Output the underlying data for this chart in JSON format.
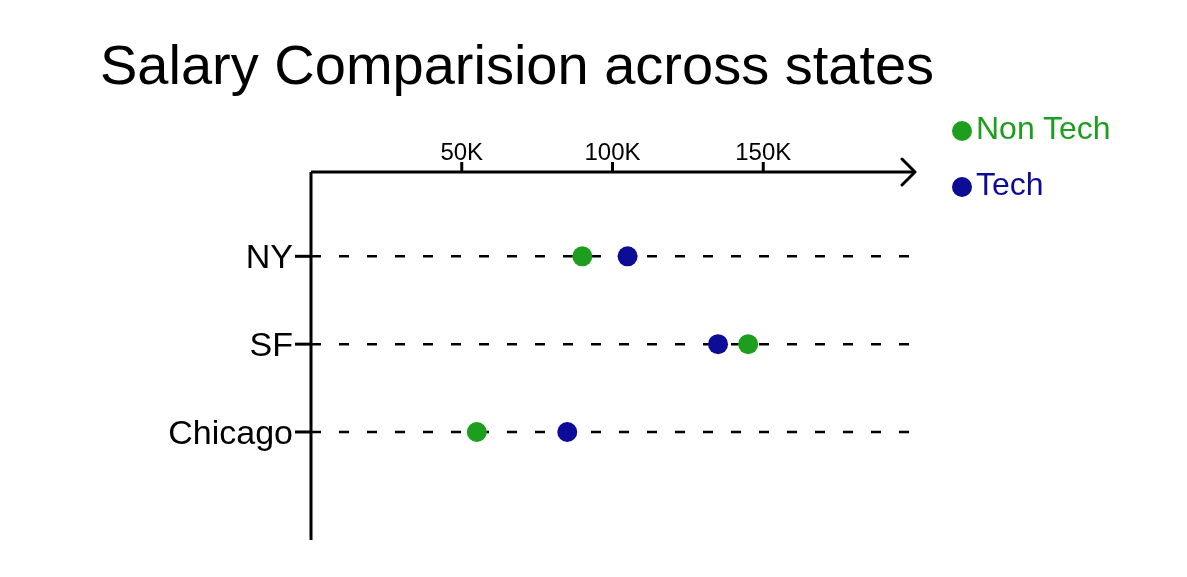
{
  "chart_data": {
    "type": "scatter",
    "title": "Salary Comparision across states",
    "categories": [
      "NY",
      "SF",
      "Chicago"
    ],
    "series": [
      {
        "name": "Non Tech",
        "color": "#1e9e1e",
        "values": [
          90000,
          145000,
          55000
        ]
      },
      {
        "name": "Tech",
        "color": "#0c0c96",
        "values": [
          105000,
          135000,
          85000
        ]
      }
    ],
    "orientation": "horizontal",
    "xlim": [
      0,
      200000
    ],
    "xticks": [
      {
        "value": 50000,
        "label": "50K"
      },
      {
        "value": 100000,
        "label": "100K"
      },
      {
        "value": 150000,
        "label": "150K"
      }
    ],
    "grid": "y",
    "legend": "top right",
    "marker": "circle"
  }
}
